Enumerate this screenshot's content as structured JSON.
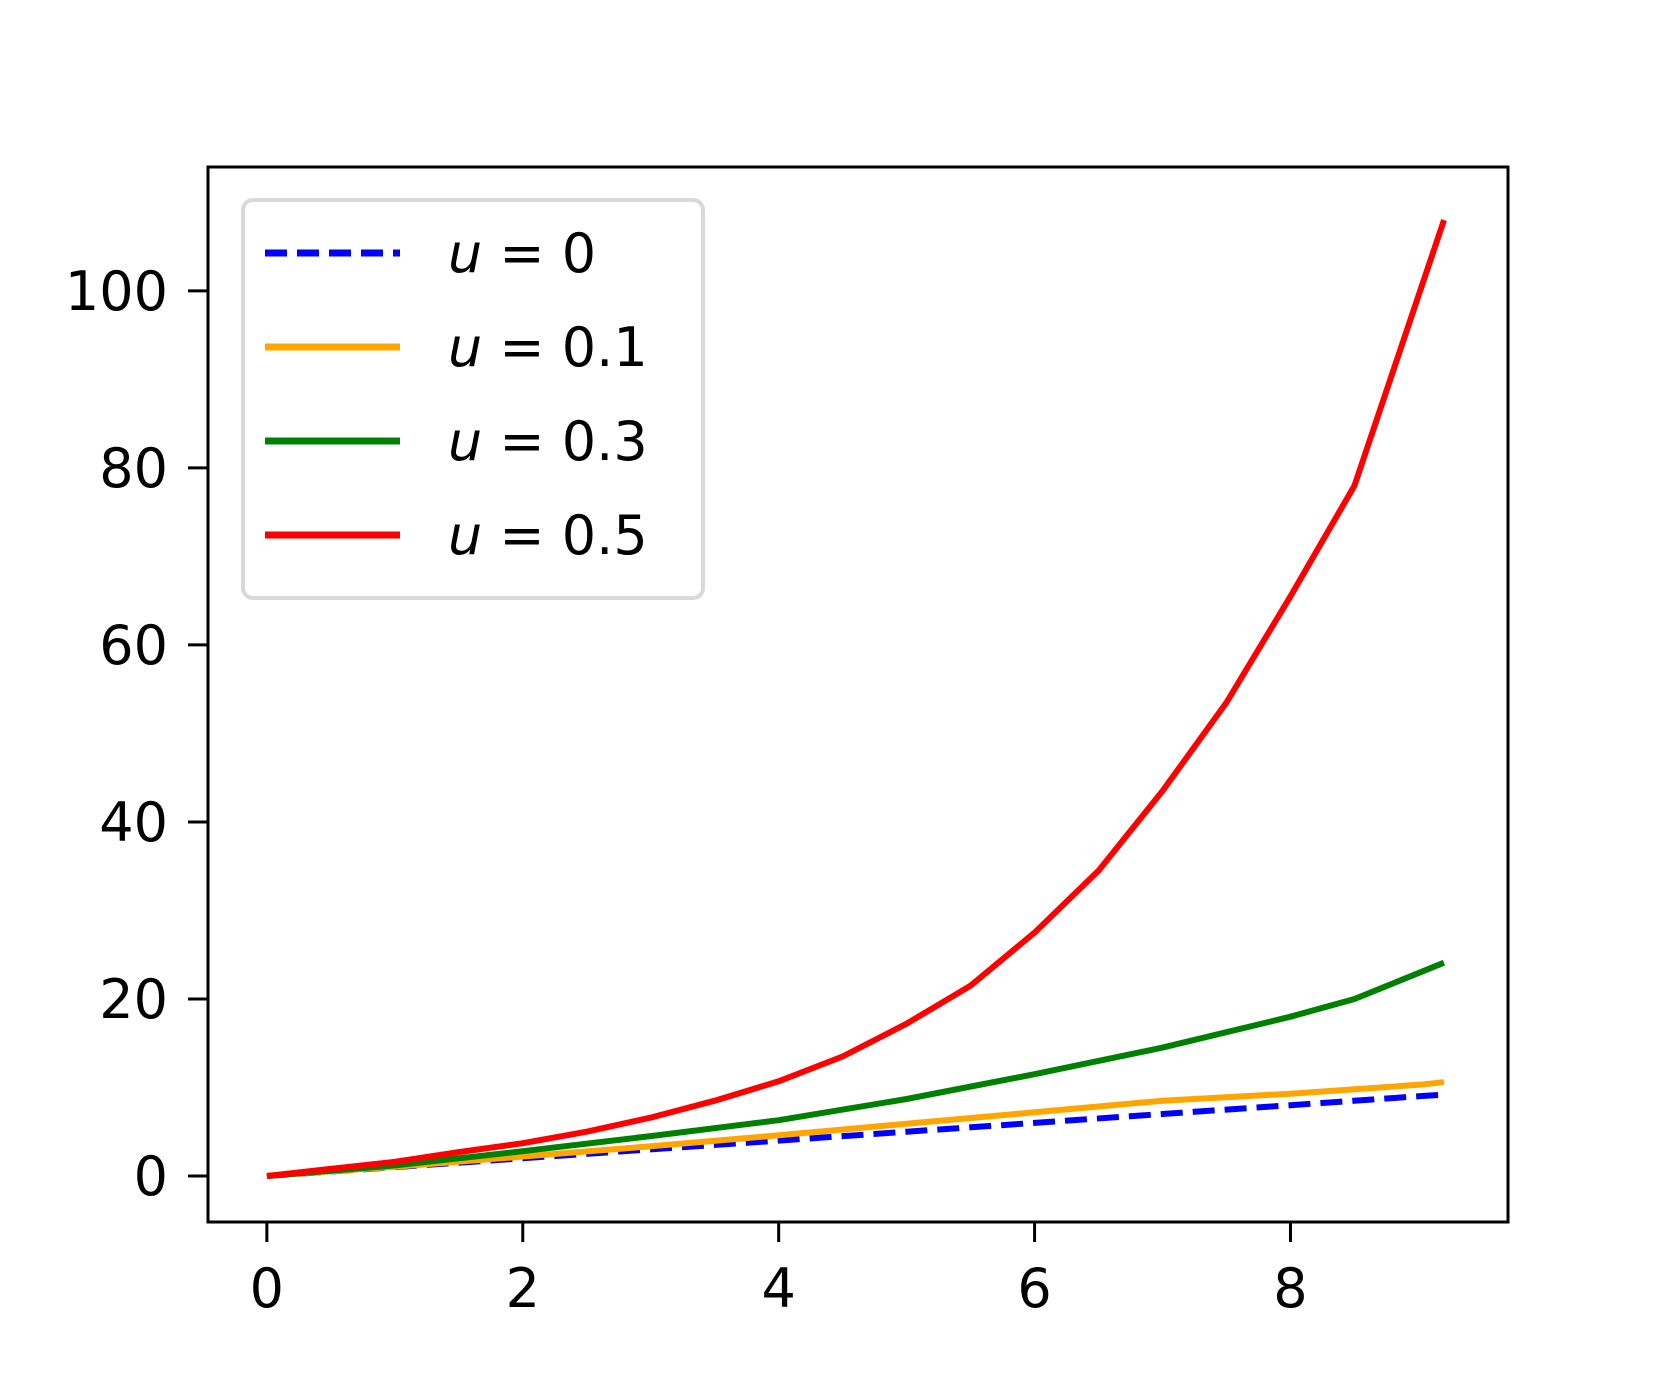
{
  "chart_data": {
    "type": "line",
    "title": "",
    "xlabel": "",
    "ylabel": "",
    "xlim": [
      -0.46,
      9.7
    ],
    "ylim": [
      -5.2,
      114
    ],
    "xticks": [
      0,
      2,
      4,
      6,
      8
    ],
    "yticks": [
      0,
      20,
      40,
      60,
      80,
      100
    ],
    "xtick_labels": [
      "0",
      "2",
      "4",
      "6",
      "8"
    ],
    "ytick_labels": [
      "0",
      "20",
      "40",
      "60",
      "80",
      "100"
    ],
    "grid": false,
    "legend_position": "upper left",
    "series": [
      {
        "name": "u = 0",
        "legend_var": "u",
        "legend_rest": " = 0",
        "color": "#0000ff",
        "style": "dashed",
        "x": [
          0,
          1,
          2,
          3,
          4,
          5,
          6,
          7,
          8,
          9,
          9.2
        ],
        "y": [
          0,
          1,
          2,
          3,
          4,
          5,
          6,
          7,
          8,
          9,
          9.2
        ]
      },
      {
        "name": "u = 0.1",
        "legend_var": "u",
        "legend_rest": " = 0.1",
        "color": "#ffa500",
        "style": "solid",
        "x": [
          0,
          1,
          2,
          3,
          4,
          5,
          6,
          7,
          8,
          9,
          9.2
        ],
        "y": [
          0,
          1.05,
          2.2,
          3.35,
          4.6,
          5.9,
          7.2,
          8.5,
          9.3,
          10.3,
          10.6
        ]
      },
      {
        "name": "u = 0.3",
        "legend_var": "u",
        "legend_rest": " = 0.3",
        "color": "#008000",
        "style": "solid",
        "x": [
          0,
          1,
          2,
          3,
          4,
          5,
          6,
          7,
          8,
          8.5,
          9.2
        ],
        "y": [
          0,
          1.2,
          2.8,
          4.5,
          6.3,
          8.7,
          11.5,
          14.5,
          18.0,
          20.0,
          24.1
        ]
      },
      {
        "name": "u = 0.5",
        "legend_var": "u",
        "legend_rest": " = 0.5",
        "color": "#ff0000",
        "style": "solid",
        "x": [
          0,
          0.5,
          1,
          1.5,
          2,
          2.5,
          3,
          3.5,
          4,
          4.5,
          5,
          5.5,
          6,
          6.5,
          7,
          7.5,
          8,
          8.5,
          9.2
        ],
        "y": [
          0,
          0.8,
          1.6,
          2.7,
          3.7,
          5.0,
          6.6,
          8.5,
          10.7,
          13.5,
          17.2,
          21.5,
          27.5,
          34.5,
          43.5,
          53.5,
          65.5,
          78.0,
          108.0
        ]
      }
    ]
  }
}
